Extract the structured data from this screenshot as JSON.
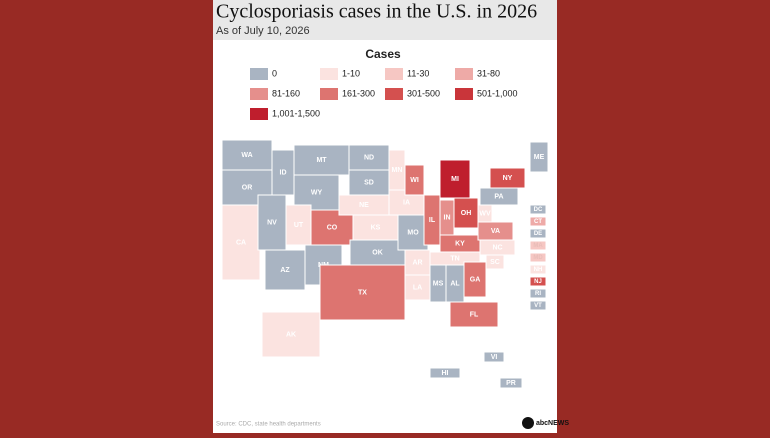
{
  "title": "Cyclosporiasis cases in the U.S. in 2026",
  "subtitle": "As of July 10, 2026",
  "legend": {
    "title": "Cases",
    "items": [
      {
        "label": "0",
        "color": "#a9b4c2"
      },
      {
        "label": "1-10",
        "color": "#fbe3e0"
      },
      {
        "label": "11-30",
        "color": "#f6c7c3"
      },
      {
        "label": "31-80",
        "color": "#eeaaa7"
      },
      {
        "label": "81-160",
        "color": "#e58f8c"
      },
      {
        "label": "161-300",
        "color": "#dd7470"
      },
      {
        "label": "301-500",
        "color": "#d4504f"
      },
      {
        "label": "501-1,000",
        "color": "#c9353a"
      },
      {
        "label": "1,001-1,500",
        "color": "#bf1e2d"
      }
    ]
  },
  "states": [
    {
      "label": "WA",
      "color": "#a9b4c2"
    },
    {
      "label": "OR",
      "color": "#a9b4c2"
    },
    {
      "label": "CA",
      "color": "#fbe3e0"
    },
    {
      "label": "NV",
      "color": "#a9b4c2"
    },
    {
      "label": "ID",
      "color": "#a9b4c2"
    },
    {
      "label": "MT",
      "color": "#a9b4c2"
    },
    {
      "label": "WY",
      "color": "#a9b4c2"
    },
    {
      "label": "UT",
      "color": "#fbe3e0"
    },
    {
      "label": "AZ",
      "color": "#a9b4c2"
    },
    {
      "label": "NM",
      "color": "#a9b4c2"
    },
    {
      "label": "CO",
      "color": "#dd7470"
    },
    {
      "label": "ND",
      "color": "#a9b4c2"
    },
    {
      "label": "SD",
      "color": "#a9b4c2"
    },
    {
      "label": "NE",
      "color": "#fbe3e0"
    },
    {
      "label": "KS",
      "color": "#fbe3e0"
    },
    {
      "label": "OK",
      "color": "#a9b4c2"
    },
    {
      "label": "TX",
      "color": "#dd7470"
    },
    {
      "label": "MN",
      "color": "#fbe3e0"
    },
    {
      "label": "IA",
      "color": "#fbe3e0"
    },
    {
      "label": "MO",
      "color": "#a9b4c2"
    },
    {
      "label": "AR",
      "color": "#fbe3e0"
    },
    {
      "label": "LA",
      "color": "#fbe3e0"
    },
    {
      "label": "WI",
      "color": "#dd7470"
    },
    {
      "label": "IL",
      "color": "#dd7470"
    },
    {
      "label": "MI",
      "color": "#bf1e2d"
    },
    {
      "label": "IN",
      "color": "#e58f8c"
    },
    {
      "label": "OH",
      "color": "#d4504f"
    },
    {
      "label": "KY",
      "color": "#dd7470"
    },
    {
      "label": "TN",
      "color": "#fbe3e0"
    },
    {
      "label": "MS",
      "color": "#a9b4c2"
    },
    {
      "label": "AL",
      "color": "#a9b4c2"
    },
    {
      "label": "GA",
      "color": "#dd7470"
    },
    {
      "label": "FL",
      "color": "#dd7470"
    },
    {
      "label": "SC",
      "color": "#fbe3e0"
    },
    {
      "label": "NC",
      "color": "#fbe3e0"
    },
    {
      "label": "VA",
      "color": "#e58f8c"
    },
    {
      "label": "WV",
      "color": "#fbe3e0"
    },
    {
      "label": "PA",
      "color": "#a9b4c2"
    },
    {
      "label": "NY",
      "color": "#d4504f"
    },
    {
      "label": "ME",
      "color": "#a9b4c2"
    },
    {
      "label": "AK",
      "color": "#fbe3e0"
    },
    {
      "label": "HI",
      "color": "#a9b4c2"
    },
    {
      "label": "VI",
      "color": "#a9b4c2"
    },
    {
      "label": "PR",
      "color": "#a9b4c2"
    },
    {
      "label": "DC",
      "color": "#a9b4c2"
    },
    {
      "label": "CT",
      "color": "#eeaaa7"
    },
    {
      "label": "DE",
      "color": "#a9b4c2"
    },
    {
      "label": "MA",
      "color": "#f6c7c3"
    },
    {
      "label": "MD",
      "color": "#f6c7c3"
    },
    {
      "label": "NH",
      "color": "#fbe3e0"
    },
    {
      "label": "NJ",
      "color": "#d4504f"
    },
    {
      "label": "RI",
      "color": "#a9b4c2"
    },
    {
      "label": "VT",
      "color": "#a9b4c2"
    }
  ],
  "source": "Source: CDC, state health departments",
  "logo": "abcNEWS"
}
